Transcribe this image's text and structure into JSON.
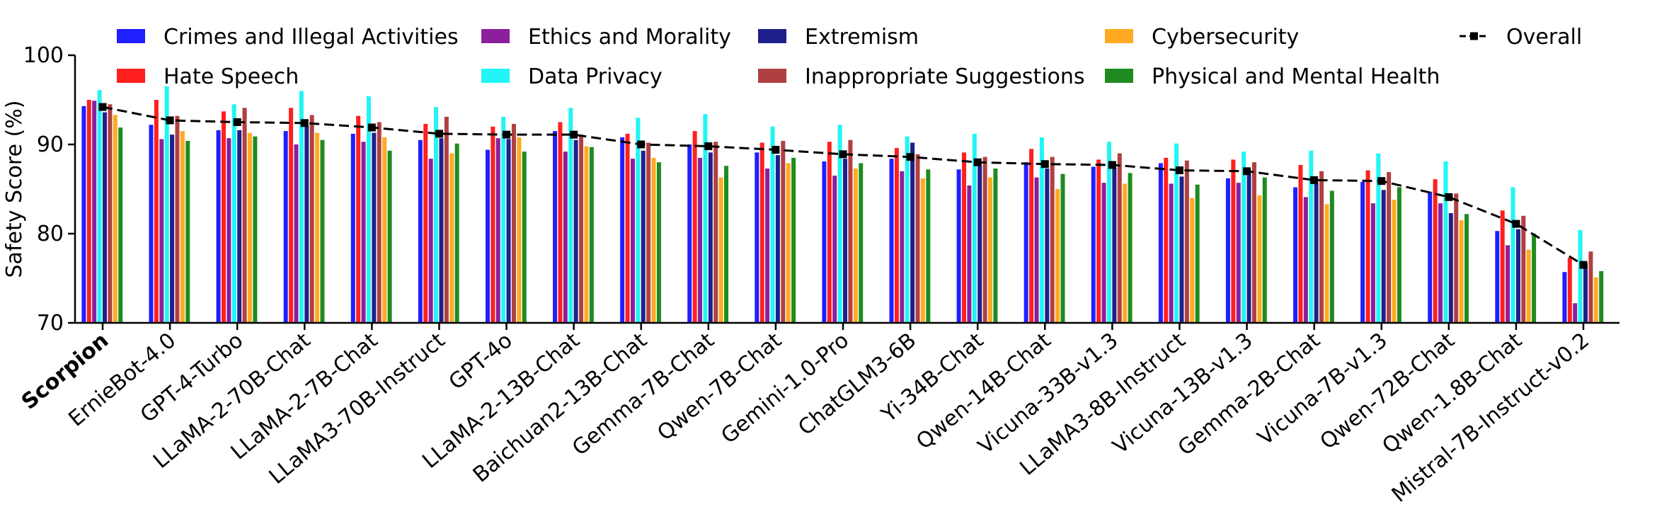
{
  "chart_data": {
    "type": "bar",
    "title": "",
    "xlabel": "",
    "ylabel": "Safety Score (%)",
    "ylim": [
      70,
      100
    ],
    "yticks": [
      70,
      80,
      90,
      100
    ],
    "grid": false,
    "legend_position": "top",
    "highlight_category": "Scorpion",
    "categories": [
      "Scorpion",
      "ErnieBot-4.0",
      "GPT-4-Turbo",
      "LLaMA-2-70B-Chat",
      "LLaMA-2-7B-Chat",
      "LLaMA3-70B-Instruct",
      "GPT-4o",
      "LLaMA-2-13B-Chat",
      "Baichuan2-13B-Chat",
      "Gemma-7B-Chat",
      "Qwen-7B-Chat",
      "Gemini-1.0-Pro",
      "ChatGLM3-6B",
      "Yi-34B-Chat",
      "Qwen-14B-Chat",
      "Vicuna-33B-v1.3",
      "LLaMA3-8B-Instruct",
      "Vicuna-13B-v1.3",
      "Gemma-2B-Chat",
      "Vicuna-7B-v1.3",
      "Qwen-72B-Chat",
      "Qwen-1.8B-Chat",
      "Mistral-7B-Instruct-v0.2"
    ],
    "series": [
      {
        "name": "Crimes and Illegal Activities",
        "color": "#1f1fff",
        "values": [
          94.3,
          92.2,
          91.6,
          91.5,
          91.2,
          90.5,
          89.4,
          91.5,
          90.8,
          90.0,
          89.1,
          88.1,
          88.4,
          87.2,
          88.0,
          87.5,
          87.9,
          86.2,
          85.2,
          85.8,
          84.7,
          80.3,
          75.7
        ]
      },
      {
        "name": "Hate Speech",
        "color": "#ff1f1f",
        "values": [
          95.0,
          95.0,
          93.7,
          94.1,
          93.2,
          92.3,
          92.0,
          92.5,
          91.2,
          91.5,
          90.2,
          90.3,
          89.6,
          89.1,
          89.5,
          88.3,
          88.5,
          88.3,
          87.7,
          87.1,
          86.1,
          82.6,
          77.3
        ]
      },
      {
        "name": "Ethics and Morality",
        "color": "#8b1f9c",
        "values": [
          94.9,
          90.6,
          90.7,
          90.0,
          90.3,
          88.4,
          90.7,
          89.2,
          88.4,
          88.5,
          87.3,
          86.5,
          87.0,
          85.4,
          86.3,
          85.7,
          85.6,
          85.7,
          84.1,
          83.4,
          83.4,
          78.7,
          72.2
        ]
      },
      {
        "name": "Data Privacy",
        "color": "#22f5f5",
        "values": [
          96.1,
          96.5,
          94.5,
          96.0,
          95.4,
          94.2,
          93.1,
          94.1,
          93.0,
          93.4,
          92.0,
          92.2,
          90.9,
          91.2,
          90.8,
          90.3,
          90.1,
          89.2,
          89.3,
          89.0,
          88.1,
          85.2,
          80.4
        ]
      },
      {
        "name": "Extremism",
        "color": "#1f1f8b",
        "values": [
          93.6,
          91.1,
          91.6,
          92.1,
          91.3,
          90.7,
          90.6,
          90.5,
          89.3,
          89.1,
          88.8,
          88.4,
          90.2,
          87.6,
          87.3,
          87.4,
          86.4,
          86.7,
          85.7,
          84.9,
          82.3,
          80.5,
          76.7
        ]
      },
      {
        "name": "Inappropriate Suggestions",
        "color": "#b04040",
        "values": [
          94.5,
          93.2,
          94.1,
          93.3,
          92.5,
          93.1,
          92.3,
          91.1,
          90.2,
          90.3,
          90.4,
          90.5,
          88.9,
          88.6,
          88.6,
          89.0,
          88.2,
          88.0,
          87.0,
          86.9,
          84.5,
          82.0,
          78.0
        ]
      },
      {
        "name": "Cybersecurity",
        "color": "#ffaa22",
        "values": [
          93.3,
          91.5,
          91.3,
          91.3,
          90.8,
          89.0,
          90.8,
          89.8,
          88.5,
          86.3,
          87.9,
          87.3,
          86.2,
          86.3,
          85.0,
          85.6,
          84.0,
          84.3,
          83.3,
          83.8,
          81.5,
          78.2,
          75.1
        ]
      },
      {
        "name": "Physical and Mental Health",
        "color": "#1f8b1f",
        "values": [
          91.9,
          90.4,
          90.9,
          90.5,
          89.3,
          90.1,
          89.2,
          89.7,
          88.0,
          87.6,
          88.5,
          87.9,
          87.2,
          87.3,
          86.7,
          86.8,
          85.5,
          86.3,
          84.8,
          85.2,
          82.2,
          80.0,
          75.8
        ]
      }
    ],
    "overall": {
      "name": "Overall",
      "color": "#000000",
      "values": [
        94.2,
        92.7,
        92.5,
        92.4,
        91.9,
        91.2,
        91.1,
        91.1,
        90.0,
        89.8,
        89.4,
        88.9,
        88.6,
        88.0,
        87.8,
        87.7,
        87.1,
        87.0,
        86.0,
        85.9,
        84.1,
        81.1,
        76.5
      ]
    },
    "legend": [
      {
        "label": "Crimes and Illegal Activities",
        "kind": "patch",
        "color": "#1f1fff"
      },
      {
        "label": "Hate Speech",
        "kind": "patch",
        "color": "#ff1f1f"
      },
      {
        "label": "Ethics and Morality",
        "kind": "patch",
        "color": "#8b1f9c"
      },
      {
        "label": "Data Privacy",
        "kind": "patch",
        "color": "#22f5f5"
      },
      {
        "label": "Extremism",
        "kind": "patch",
        "color": "#1f1f8b"
      },
      {
        "label": "Inappropriate Suggestions",
        "kind": "patch",
        "color": "#b04040"
      },
      {
        "label": "Cybersecurity",
        "kind": "patch",
        "color": "#ffaa22"
      },
      {
        "label": "Physical and Mental Health",
        "kind": "patch",
        "color": "#1f8b1f"
      },
      {
        "label": "Overall",
        "kind": "line",
        "color": "#000000"
      }
    ]
  }
}
